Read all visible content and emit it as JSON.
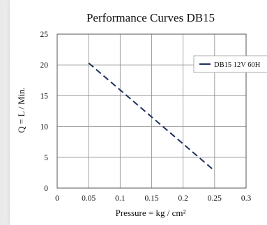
{
  "chart_data": {
    "type": "line",
    "title": "Performance  Curves  DB15",
    "xlabel": "Pressure = kg / cm²",
    "ylabel": "Q = L / Min.",
    "xlim": [
      0,
      0.3
    ],
    "ylim": [
      0,
      25
    ],
    "x_ticks": [
      "0",
      "0.05",
      "0.1",
      "0.15",
      "0.2",
      "0.25",
      "0.3"
    ],
    "y_ticks": [
      "0",
      "5",
      "10",
      "15",
      "20",
      "25"
    ],
    "grid": true,
    "legend_position": "top-right",
    "series": [
      {
        "name": "DB15   12V 60H",
        "style": "dashed",
        "color": "#1f2f5e",
        "x": [
          0.05,
          0.25
        ],
        "y": [
          20.3,
          2.8
        ]
      }
    ]
  }
}
